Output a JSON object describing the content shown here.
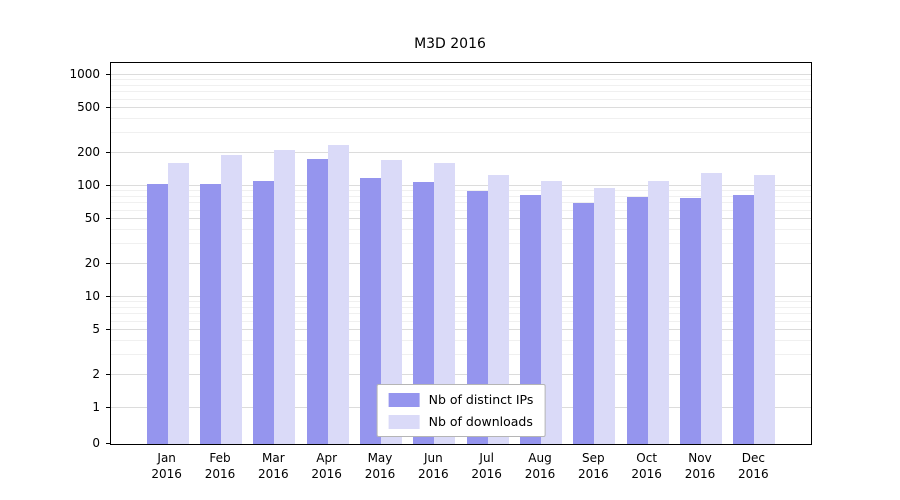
{
  "title": "M3D 2016",
  "chart_data": {
    "type": "bar",
    "title": "M3D 2016",
    "scale": "symlog",
    "grid": true,
    "legend_position": "bottom-center",
    "categories": [
      "Jan",
      "Feb",
      "Mar",
      "Apr",
      "May",
      "Jun",
      "Jul",
      "Aug",
      "Sep",
      "Oct",
      "Nov",
      "Dec"
    ],
    "year": "2016",
    "yticks": [
      0,
      1,
      2,
      5,
      10,
      20,
      50,
      100,
      200,
      500,
      1000
    ],
    "ylim": [
      0,
      1000
    ],
    "series": [
      {
        "name": "Nb of distinct IPs",
        "color": "#9595ee",
        "values": [
          105,
          105,
          112,
          175,
          118,
          108,
          90,
          83,
          71,
          80,
          78,
          83
        ]
      },
      {
        "name": "Nb of downloads",
        "color": "#dadaf8",
        "values": [
          160,
          190,
          210,
          235,
          172,
          160,
          126,
          110,
          96,
          110,
          130,
          126
        ]
      }
    ]
  }
}
